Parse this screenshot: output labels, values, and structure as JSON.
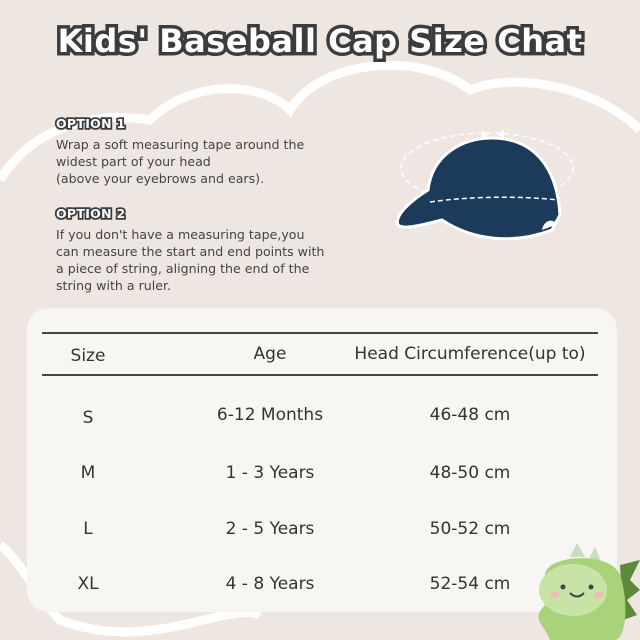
{
  "title": "Kids' Baseball Cap Size Chat",
  "options": [
    {
      "label": "OPTION 1",
      "text": "Wrap a soft measuring tape around the\nwidest part of your head\n(above your eyebrows and ears)."
    },
    {
      "label": "OPTION 2",
      "text": "If you don't have a measuring tape,you\ncan measure the start and end points with\na piece of string, aligning the end of the\nstring with a ruler."
    }
  ],
  "table": {
    "headers": [
      "Size",
      "Age",
      "Head Circumference(up to)"
    ],
    "rows": [
      [
        "S",
        "6-12 Months",
        "46-48 cm"
      ],
      [
        "M",
        "1 - 3 Years",
        "48-50 cm"
      ],
      [
        "L",
        "2 - 5 Years",
        "50-52 cm"
      ],
      [
        "XL",
        "4 - 8 Years",
        "52-54 cm"
      ]
    ]
  },
  "colors": {
    "background": "#ede6e1",
    "card": "#f7f6f3",
    "cap": "#1c3a5a",
    "dino": "#a8d37a"
  },
  "images": {
    "cap": "navy-dinosaur-print-baseball-cap-image",
    "mascot": "green-dinosaur-mascot-image"
  }
}
